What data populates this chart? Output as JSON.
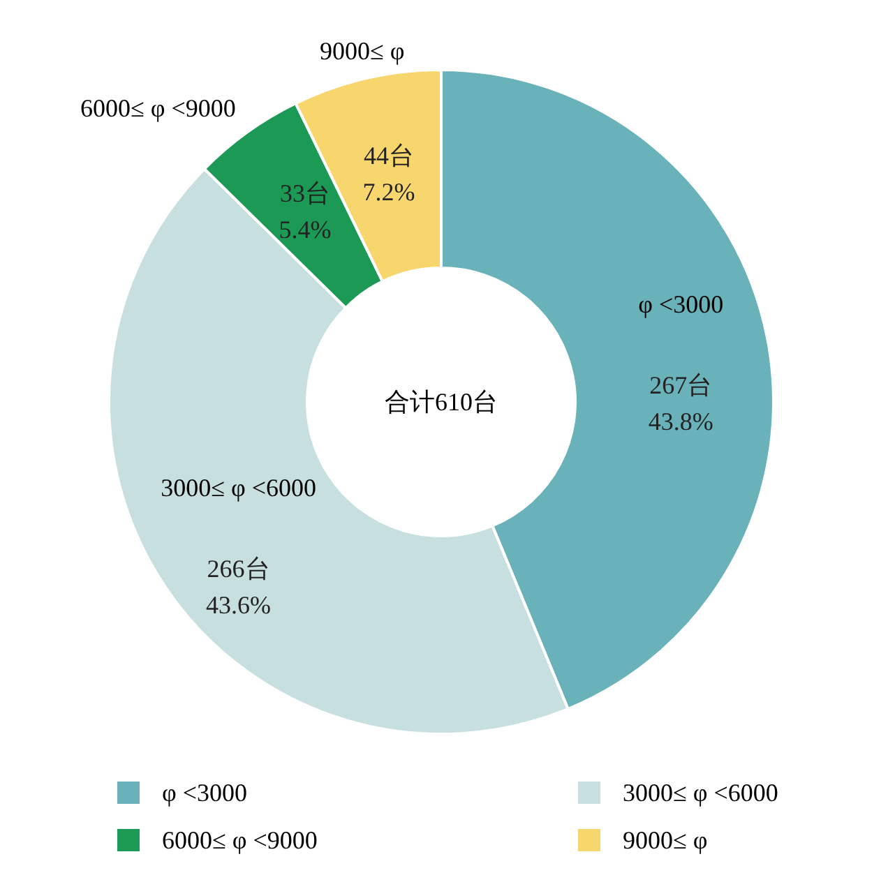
{
  "chart_data": {
    "type": "donut",
    "categories": [
      "φ <3000",
      "3000≤ φ <6000",
      "6000≤ φ <9000",
      "9000≤ φ"
    ],
    "values": [
      267,
      266,
      33,
      44
    ],
    "value_labels": [
      "267台\n43.8%",
      "266台\n43.6%",
      "33台\n5.4%",
      "44台\n7.2%"
    ],
    "colors": [
      "#6ab2ba",
      "#c8dfe0",
      "#1c9a55",
      "#f8d66e"
    ],
    "annotations": [
      "合计610台"
    ],
    "legend": "bottom"
  }
}
